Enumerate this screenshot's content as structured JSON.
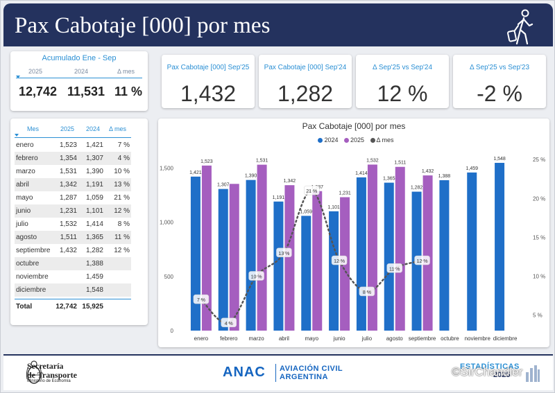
{
  "header": {
    "title": "Pax Cabotaje [000] por mes"
  },
  "accum": {
    "title": "Acumulado Ene - Sep",
    "headers": [
      "2025",
      "2024",
      "Δ mes"
    ],
    "values": [
      "12,742",
      "11,531",
      "11 %"
    ]
  },
  "kpis": [
    {
      "label": "Pax Cabotaje [000] Sep'25",
      "value": "1,432"
    },
    {
      "label": "Pax Cabotaje [000] Sep'24",
      "value": "1,282"
    },
    {
      "label": "Δ Sep'25 vs Sep'24",
      "value": "12 %"
    },
    {
      "label": "Δ Sep'25 vs Sep'23",
      "value": "-2 %"
    }
  ],
  "monthly_table": {
    "headers": [
      "Mes",
      "2025",
      "2024",
      "Δ mes"
    ],
    "rows": [
      [
        "enero",
        "1,523",
        "1,421",
        "7 %"
      ],
      [
        "febrero",
        "1,354",
        "1,307",
        "4 %"
      ],
      [
        "marzo",
        "1,531",
        "1,390",
        "10 %"
      ],
      [
        "abril",
        "1,342",
        "1,191",
        "13 %"
      ],
      [
        "mayo",
        "1,287",
        "1,059",
        "21 %"
      ],
      [
        "junio",
        "1,231",
        "1,101",
        "12 %"
      ],
      [
        "julio",
        "1,532",
        "1,414",
        "8 %"
      ],
      [
        "agosto",
        "1,511",
        "1,365",
        "11 %"
      ],
      [
        "septiembre",
        "1,432",
        "1,282",
        "12 %"
      ],
      [
        "octubre",
        "",
        "1,388",
        ""
      ],
      [
        "noviembre",
        "",
        "1,459",
        ""
      ],
      [
        "diciembre",
        "",
        "1,548",
        ""
      ]
    ],
    "total": [
      "Total",
      "12,742",
      "15,925"
    ]
  },
  "chart_data": {
    "type": "bar",
    "title": "Pax Cabotaje [000] por mes",
    "categories": [
      "enero",
      "febrero",
      "marzo",
      "abril",
      "mayo",
      "junio",
      "julio",
      "agosto",
      "septiembre",
      "octubre",
      "noviembre",
      "diciembre"
    ],
    "series": [
      {
        "name": "2024",
        "values": [
          1421,
          1307,
          1390,
          1191,
          1059,
          1101,
          1414,
          1365,
          1282,
          1388,
          1459,
          1548
        ],
        "labels": [
          "1,421",
          "1,307",
          "1,390",
          "1,191",
          "1,059",
          "1,101",
          "1,414",
          "1,365",
          "1,282",
          "1,388",
          "1,459",
          "1,548"
        ],
        "color": "#1f6fc8"
      },
      {
        "name": "2025",
        "values": [
          1523,
          1354,
          1531,
          1342,
          1287,
          1231,
          1532,
          1511,
          1432,
          null,
          null,
          null
        ],
        "labels": [
          "1,523",
          "",
          "1,531",
          "1,342",
          "1,287",
          "1,231",
          "1,532",
          "1,511",
          "1,432",
          "",
          "",
          ""
        ],
        "color": "#a55ebf"
      },
      {
        "name": "Δ mes",
        "type": "line",
        "axis": "right",
        "values": [
          7,
          4,
          10,
          13,
          21,
          12,
          8,
          11,
          12,
          null,
          null,
          null
        ],
        "labels": [
          "7 %",
          "4 %",
          "10 %",
          "13 %",
          "21 %",
          "12 %",
          "8 %",
          "11 %",
          "12 %",
          "",
          "",
          ""
        ],
        "color": "#555555"
      }
    ],
    "y_left": {
      "ticks": [
        0,
        500,
        1000,
        1500
      ],
      "tick_labels": [
        "0",
        "500",
        "1,000",
        "1,500"
      ],
      "range": [
        0,
        1650
      ]
    },
    "y_right": {
      "ticks": [
        5,
        10,
        15,
        20,
        25
      ],
      "tick_labels": [
        "5 %",
        "10 %",
        "15 %",
        "20 %",
        "25 %"
      ],
      "range": [
        3,
        26
      ]
    },
    "legend_position": "top-center",
    "grid": false
  },
  "footer": {
    "ministry_line1": "Secretaría",
    "ministry_line2": "de Transporte",
    "ministry_line3": "Ministerio de Economía",
    "anac": "ANAC",
    "anac_sub1": "AVIACIÓN CIVIL",
    "anac_sub2": "ARGENTINA",
    "stats_line1": "ESTADÍSTICAS",
    "stats_line2": "2025"
  },
  "watermark": "©SirChandler"
}
